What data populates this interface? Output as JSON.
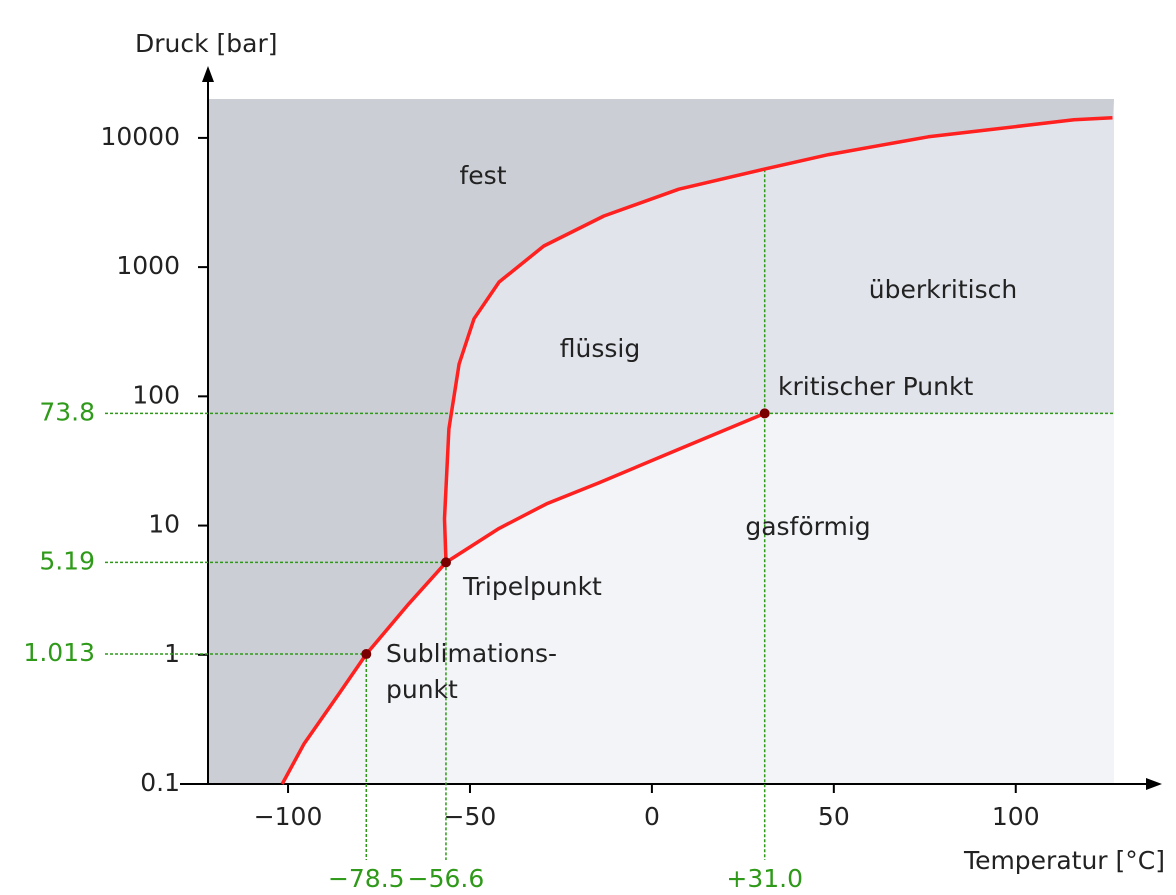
{
  "chart_data": {
    "type": "line",
    "ylabel": "Druck [bar]",
    "xlabel": "Temperatur [°C]",
    "xlim": [
      -122,
      127
    ],
    "ylim": [
      0.1,
      20000
    ],
    "log_y": true,
    "xticks": [
      {
        "value": -100,
        "label": "−100"
      },
      {
        "value": -50,
        "label": "−50"
      },
      0,
      50,
      100
    ],
    "yticks": [
      0.1,
      1,
      10,
      100,
      1000,
      10000
    ],
    "series": [
      {
        "color": "#ff2020",
        "x": [
          -101.6,
          -95.6,
          -86,
          -78.5,
          -66.8,
          -56.6
        ],
        "values": [
          0.1,
          0.205,
          0.5,
          1.013,
          2.48,
          5.19
        ]
      },
      {
        "color": "#ff2020",
        "x": [
          -56.6,
          -42,
          -29,
          -14.6,
          7.4,
          31
        ],
        "values": [
          5.19,
          9.5,
          14.7,
          21.4,
          39,
          73.8
        ]
      },
      {
        "color": "#ff2020",
        "x": [
          -56.6,
          -57,
          -55.8,
          -53,
          -48.9,
          -42,
          -29.7,
          -13.2,
          7.4,
          30.8,
          48.6,
          76,
          116,
          126.6
        ],
        "values": [
          5.19,
          11.3,
          56,
          178,
          398,
          767,
          1456,
          2485,
          4010,
          5720,
          7420,
          10200,
          13800,
          14300
        ]
      }
    ],
    "points": [
      {
        "label": [
          "Sublimations-",
          "punkt"
        ],
        "x": -78.5,
        "y": 1.013,
        "x_label": "−78.5"
      },
      {
        "label": [
          "Tripelpunkt"
        ],
        "x": -56.6,
        "y": 5.19,
        "x_label": "−56.6"
      },
      {
        "label": [
          "kritischer Punkt"
        ],
        "x": 31.0,
        "y": 73.8,
        "x_label": "+31.0"
      }
    ],
    "point_color": "#7a0000",
    "guide_color": "#2f9a1a",
    "region_labels": [
      "fest",
      "flüssig",
      "überkritisch",
      "gasförmig"
    ],
    "region_colors": {
      "solid": "#cbced4",
      "fluid": "#e1e4eb",
      "gas": "#f3f4f8"
    }
  }
}
